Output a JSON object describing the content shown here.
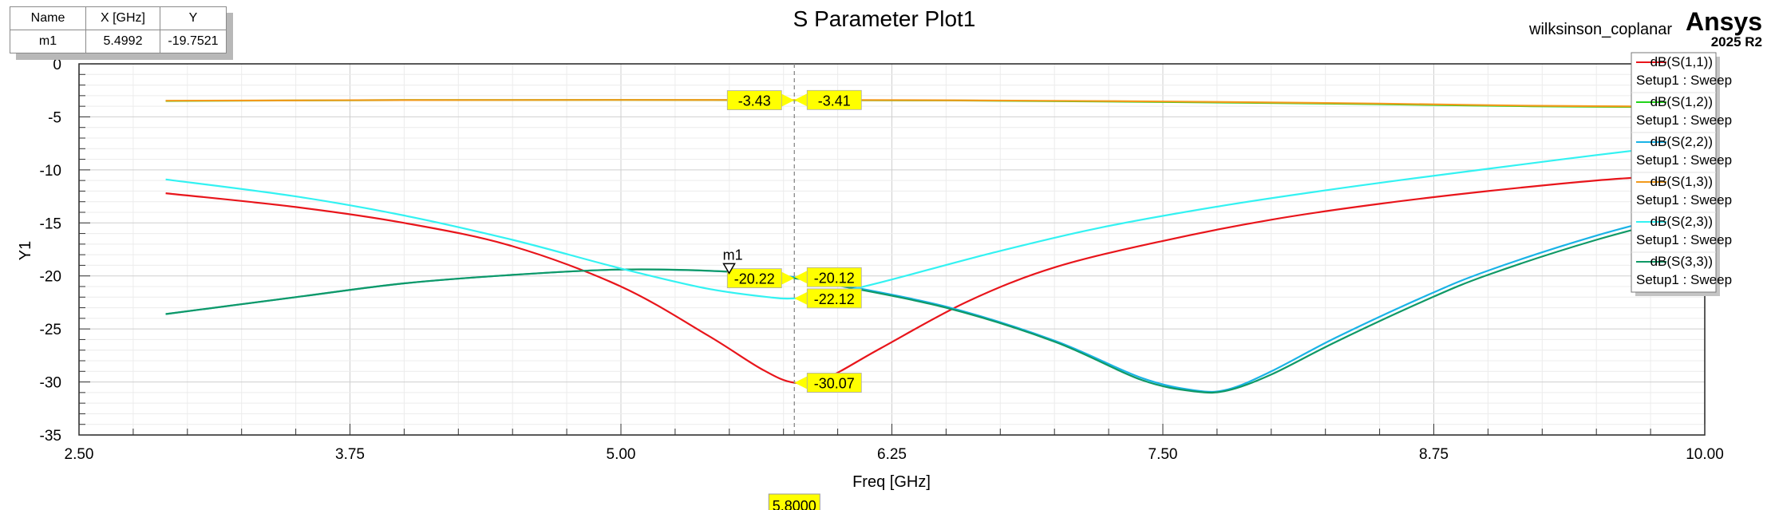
{
  "header": {
    "title": "S Parameter Plot1",
    "project": "wilksinson_coplanar",
    "brand": "Ansys",
    "version": "2025 R2"
  },
  "marker_table": {
    "headers": [
      "Name",
      "X [GHz]",
      "Y"
    ],
    "rows": [
      [
        "m1",
        "5.4992",
        "-19.7521"
      ]
    ]
  },
  "marker": {
    "name": "m1",
    "x": 5.4992,
    "y": -19.7521
  },
  "cursor": {
    "x": 5.8,
    "label": "5.8000"
  },
  "colors": {
    "s11": "#e8151b",
    "s12": "#22d41b",
    "s22": "#1ab3e6",
    "s13": "#f29a1c",
    "s23": "#33f2f2",
    "s33": "#0f9966",
    "callout": "#ffff00"
  },
  "chart_data": {
    "type": "line",
    "title": "S Parameter Plot1",
    "xlabel": "Freq [GHz]",
    "ylabel": "Y1",
    "xlim": [
      2.5,
      10.0
    ],
    "ylim": [
      -35,
      0
    ],
    "xticks": [
      "2.50",
      "3.75",
      "5.00",
      "6.25",
      "7.50",
      "8.75",
      "10.00"
    ],
    "yticks": [
      "0",
      "-5",
      "-10",
      "-15",
      "-20",
      "-25",
      "-30",
      "-35"
    ],
    "grid": true,
    "legend_position": "top-right",
    "series": [
      {
        "name": "dB(S(1,1))",
        "setup": "Setup1 : Sweep",
        "color": "#e8151b",
        "x": [
          2.9,
          3.5,
          4.0,
          4.5,
          5.0,
          5.4,
          5.65,
          5.8,
          5.95,
          6.2,
          6.6,
          7.0,
          7.5,
          8.0,
          8.5,
          9.0,
          9.5,
          10.0
        ],
        "y": [
          -12.2,
          -13.5,
          -15.0,
          -17.2,
          -21.0,
          -25.6,
          -28.8,
          -30.07,
          -29.6,
          -26.8,
          -22.4,
          -19.2,
          -16.7,
          -14.7,
          -13.2,
          -12.0,
          -11.0,
          -10.3
        ]
      },
      {
        "name": "dB(S(1,2))",
        "setup": "Setup1 : Sweep",
        "color": "#22d41b",
        "x": [
          2.9,
          4.0,
          5.0,
          5.8,
          6.5,
          7.5,
          8.5,
          9.2,
          10.0
        ],
        "y": [
          -3.5,
          -3.42,
          -3.4,
          -3.43,
          -3.45,
          -3.6,
          -3.8,
          -4.0,
          -4.1
        ]
      },
      {
        "name": "dB(S(2,2))",
        "setup": "Setup1 : Sweep",
        "color": "#1ab3e6",
        "x": [
          2.9,
          3.5,
          4.0,
          4.5,
          5.0,
          5.5,
          5.8,
          6.0,
          6.5,
          7.0,
          7.4,
          7.65,
          7.8,
          8.0,
          8.3,
          8.7,
          9.0,
          9.5,
          10.0
        ],
        "y": [
          -23.6,
          -22.0,
          -20.7,
          -19.9,
          -19.4,
          -19.6,
          -20.12,
          -20.8,
          -22.9,
          -26.1,
          -29.6,
          -30.8,
          -30.7,
          -29.0,
          -25.8,
          -22.0,
          -19.5,
          -16.2,
          -13.5
        ]
      },
      {
        "name": "dB(S(1,3))",
        "setup": "Setup1 : Sweep",
        "color": "#f29a1c",
        "x": [
          2.9,
          4.0,
          5.0,
          5.8,
          6.5,
          7.5,
          8.5,
          9.2,
          10.0
        ],
        "y": [
          -3.48,
          -3.42,
          -3.4,
          -3.41,
          -3.43,
          -3.55,
          -3.75,
          -3.95,
          -4.05
        ]
      },
      {
        "name": "dB(S(2,3))",
        "setup": "Setup1 : Sweep",
        "color": "#33f2f2",
        "x": [
          2.9,
          3.5,
          4.0,
          4.5,
          5.0,
          5.4,
          5.7,
          5.8,
          5.9,
          6.2,
          6.7,
          7.2,
          7.8,
          8.4,
          9.0,
          9.5,
          10.0
        ],
        "y": [
          -10.9,
          -12.5,
          -14.3,
          -16.6,
          -19.3,
          -21.2,
          -22.05,
          -22.12,
          -22.0,
          -20.6,
          -17.9,
          -15.5,
          -13.3,
          -11.5,
          -9.9,
          -8.6,
          -7.4
        ]
      },
      {
        "name": "dB(S(3,3))",
        "setup": "Setup1 : Sweep",
        "color": "#0f9966",
        "x": [
          2.9,
          3.5,
          4.0,
          4.5,
          5.0,
          5.5,
          5.8,
          6.0,
          6.5,
          7.0,
          7.4,
          7.65,
          7.8,
          8.0,
          8.3,
          8.7,
          9.0,
          9.5,
          10.0
        ],
        "y": [
          -23.6,
          -22.0,
          -20.7,
          -19.9,
          -19.4,
          -19.6,
          -20.22,
          -20.9,
          -23.0,
          -26.2,
          -29.8,
          -30.9,
          -30.8,
          -29.3,
          -26.2,
          -22.4,
          -19.9,
          -16.6,
          -13.9
        ]
      }
    ],
    "callouts": [
      {
        "series": "dB(S(1,2))",
        "x": 5.8,
        "y": -3.43,
        "label": "-3.43",
        "side": "left"
      },
      {
        "series": "dB(S(1,3))",
        "x": 5.8,
        "y": -3.41,
        "label": "-3.41",
        "side": "right"
      },
      {
        "series": "dB(S(3,3))",
        "x": 5.8,
        "y": -20.22,
        "label": "-20.22",
        "side": "left"
      },
      {
        "series": "dB(S(2,2))",
        "x": 5.8,
        "y": -20.12,
        "label": "-20.12",
        "side": "right"
      },
      {
        "series": "dB(S(2,3))",
        "x": 5.8,
        "y": -22.12,
        "label": "-22.12",
        "side": "right"
      },
      {
        "series": "dB(S(1,1))",
        "x": 5.8,
        "y": -30.07,
        "label": "-30.07",
        "side": "right"
      }
    ]
  }
}
